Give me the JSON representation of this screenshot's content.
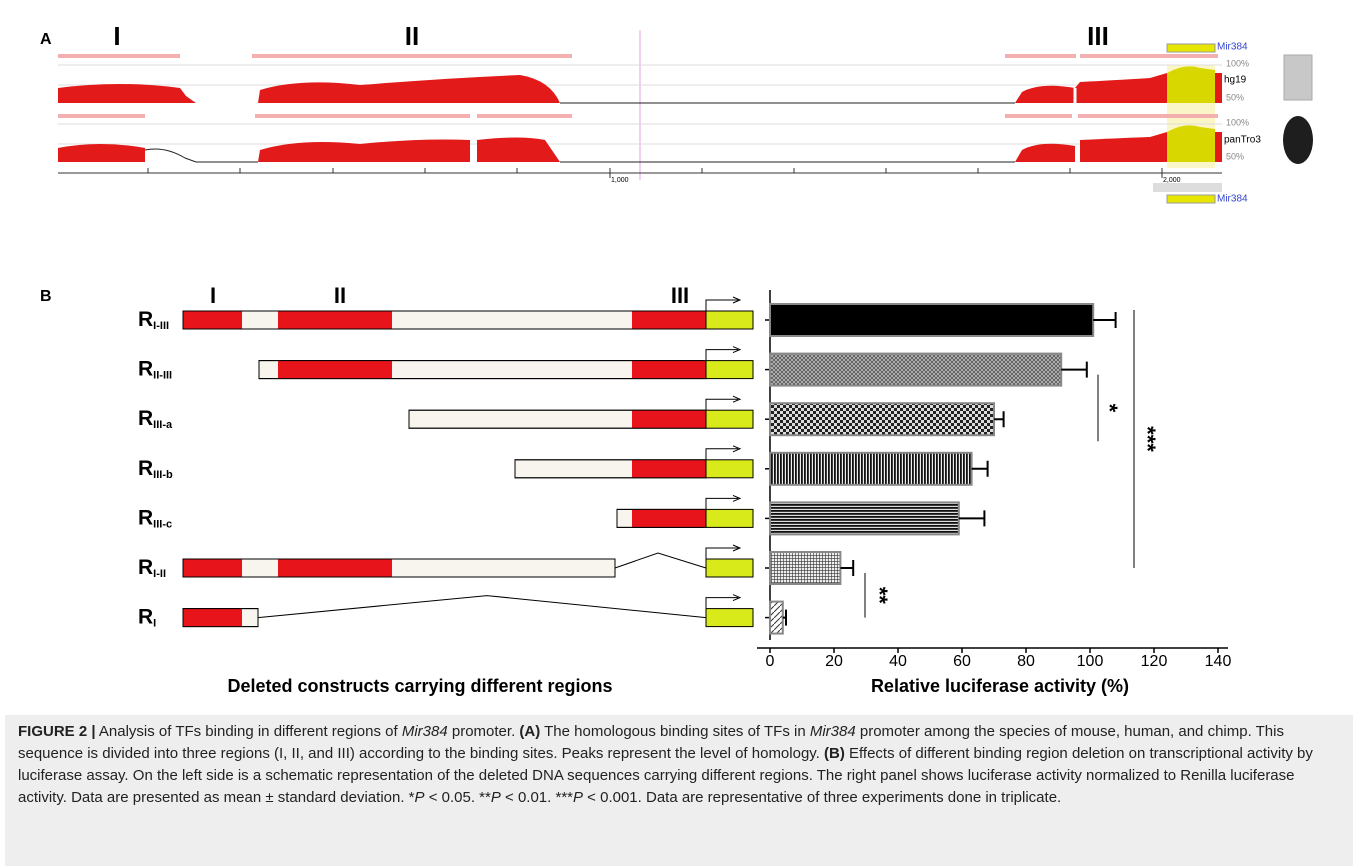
{
  "panel_a": {
    "label": "A",
    "regions": [
      "I",
      "II",
      "III"
    ],
    "gene": "Mir384",
    "gene_bottom": "Mir384",
    "track1": {
      "top": "100%",
      "name": "hg19",
      "bottom": "50%"
    },
    "track2": {
      "top": "100%",
      "name": "panTro3",
      "bottom": "50%"
    },
    "ruler": [
      "1,000",
      "2,000"
    ]
  },
  "panel_b": {
    "label": "B",
    "regions": [
      "I",
      "II",
      "III"
    ],
    "left_label": "Deleted constructs carrying different regions"
  },
  "chart_data": {
    "type": "bar",
    "orientation": "horizontal",
    "xlabel": "Relative luciferase activity (%)",
    "category_prefix": "R",
    "categories": [
      "I-III",
      "II-III",
      "III-a",
      "III-b",
      "III-c",
      "I-II",
      "I"
    ],
    "series": [
      {
        "values": [
          101,
          91,
          70,
          63,
          59,
          22,
          4
        ],
        "errors": [
          7,
          8,
          3,
          5,
          8,
          4,
          1
        ],
        "color": "#000000"
      }
    ],
    "xlim": [
      0,
      140
    ],
    "xticks": [
      0,
      20,
      40,
      60,
      80,
      100,
      120,
      140
    ],
    "annotations": [
      {
        "text": "*"
      },
      {
        "text": "***"
      },
      {
        "text": "**"
      }
    ]
  },
  "caption": {
    "runs": [
      "FIGURE 2 |",
      " Analysis of TFs binding in different regions of ",
      "Mir384",
      " promoter. ",
      "(A)",
      " The homologous binding sites of TFs in ",
      "Mir384",
      " promoter among the species of mouse, human, and chimp. This sequence is divided into three regions (I, II, and III) according to the binding sites. Peaks represent the level of homology. ",
      "(B)",
      " Effects of different binding region deletion on transcriptional activity by luciferase assay. On the left side is a schematic representation of the deleted DNA sequences carrying different regions. The right panel shows luciferase activity normalized to Renilla luciferase activity. Data are presented as mean ± standard deviation. *",
      "P",
      " < 0.05. **",
      "P",
      " < 0.01. ***",
      "P",
      " < 0.001. Data are representative of three experiments done in triplicate."
    ]
  }
}
